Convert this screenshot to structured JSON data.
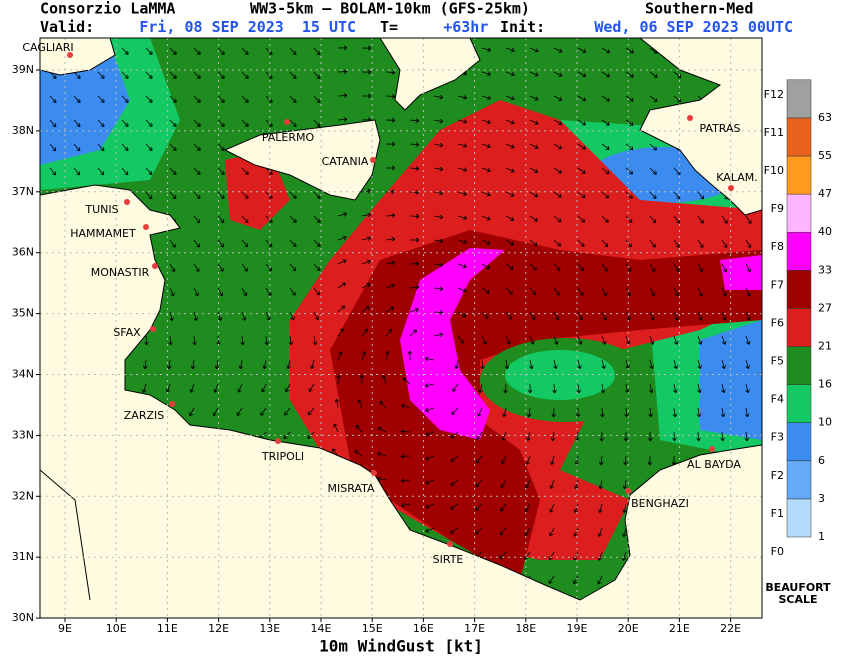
{
  "header": {
    "producer": "Consorzio LaMMA",
    "model": "WW3-5km – BOLAM-10km (GFS-25km)",
    "domain": "Southern-Med",
    "valid_label": "Valid:",
    "valid": "Fri, 08 SEP 2023  15 UTC",
    "lead_label": "T=",
    "lead": "+63hr",
    "init_label": "Init:",
    "init": "Wed, 06 SEP 2023 00UTC"
  },
  "map": {
    "latitudes": [
      "39N",
      "38N",
      "37N",
      "36N",
      "35N",
      "34N",
      "33N",
      "32N",
      "31N",
      "30N"
    ],
    "longitudes": [
      "9E",
      "10E",
      "11E",
      "12E",
      "13E",
      "14E",
      "15E",
      "16E",
      "17E",
      "18E",
      "19E",
      "20E",
      "21E",
      "22E"
    ],
    "cities": [
      "CAGLIARI",
      "PALERMO",
      "CATANIA",
      "TUNIS",
      "HAMMAMET",
      "MONASTIR",
      "SFAX",
      "ZARZIS",
      "TRIPOLI",
      "MISRATA",
      "SIRTE",
      "BENGHAZI",
      "AL BAYDA",
      "PATRAS",
      "KALAM."
    ],
    "variable": "10m WindGust [kt]"
  },
  "legend": {
    "knots": [
      1,
      3,
      6,
      10,
      16,
      21,
      27,
      33,
      40,
      47,
      55,
      63
    ],
    "beaufort": [
      "F0",
      "F1",
      "F2",
      "F3",
      "F4",
      "F5",
      "F6",
      "F7",
      "F8",
      "F9",
      "F10",
      "F11",
      "F12"
    ],
    "colors": [
      "#b4dcfa",
      "#64aaf5",
      "#3c8cf0",
      "#14c864",
      "#1e8c1e",
      "#dc1e1e",
      "#a00000",
      "#ff00ff",
      "#ffb4ff",
      "#ff9a1e",
      "#e8641e",
      "#a0a0a0"
    ],
    "title": [
      "BEAUFORT",
      "SCALE"
    ]
  }
}
